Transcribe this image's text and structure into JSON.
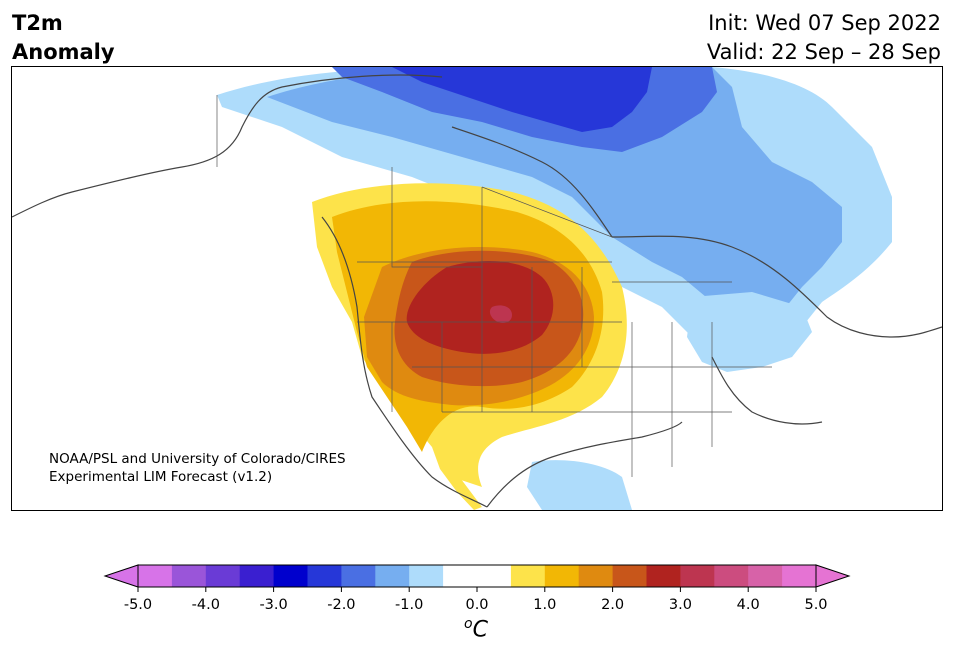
{
  "header": {
    "title_line1": "T2m",
    "title_line2": "Anomaly",
    "init_label": "Init: Wed 07 Sep 2022",
    "valid_label": "Valid: 22 Sep – 28 Sep"
  },
  "credit": {
    "line1": "NOAA/PSL and University of Colorado/CIRES",
    "line2": "Experimental LIM Forecast (v1.2)"
  },
  "colorbar": {
    "units_symbol": "o",
    "units_letter": "C",
    "tick_labels": [
      "-5.0",
      "-4.0",
      "-3.0",
      "-2.0",
      "-1.0",
      "0.0",
      "1.0",
      "2.0",
      "3.0",
      "4.0",
      "5.0"
    ],
    "colors": [
      "#d773e8",
      "#9a55d9",
      "#6a3bd6",
      "#3a1fd0",
      "#0000cd",
      "#2637d8",
      "#4a6fe3",
      "#76aef0",
      "#aedcfb",
      "#ffffff",
      "#ffffff",
      "#fde34a",
      "#f2b705",
      "#df8a10",
      "#c8561a",
      "#b0231f",
      "#bd3550",
      "#cc4c7f",
      "#d762a8",
      "#e573d3"
    ],
    "under_color": "#d773e8",
    "over_color": "#e573d3"
  },
  "map": {
    "anomaly_colors": {
      "pos1": "#fde34a",
      "pos2": "#f2b705",
      "pos3": "#df8a10",
      "pos4": "#c8561a",
      "pos5": "#b0231f",
      "pos6": "#bd3550",
      "neg1": "#aedcfb",
      "neg2": "#76aef0",
      "neg3": "#4a6fe3",
      "neg4": "#2637d8"
    }
  }
}
